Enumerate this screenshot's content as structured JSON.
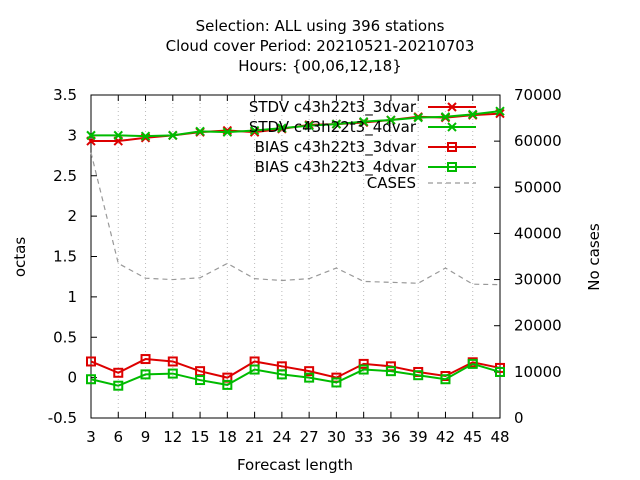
{
  "chart_data": {
    "type": "line",
    "title_lines": [
      "Selection: ALL using   396 stations",
      "Cloud cover   Period: 20210521-20210703",
      "Hours: {00,06,12,18}"
    ],
    "xlabel": "Forecast length",
    "ylabel": "octas",
    "y2label": "No cases",
    "x": [
      3,
      6,
      9,
      12,
      15,
      18,
      21,
      24,
      27,
      30,
      33,
      36,
      39,
      42,
      45,
      48
    ],
    "xlim": [
      3,
      48
    ],
    "ylim": [
      -0.5,
      3.5
    ],
    "y2lim": [
      0,
      70000
    ],
    "yticks": [
      "-0.5",
      "0",
      "0.5",
      "1",
      "1.5",
      "2",
      "2.5",
      "3",
      "3.5"
    ],
    "y2ticks": [
      "0",
      "10000",
      "20000",
      "30000",
      "40000",
      "50000",
      "60000",
      "70000"
    ],
    "legend_position": "top-right",
    "series": [
      {
        "name": "STDV c43h22t3_3dvar",
        "color": "#dd0000",
        "marker": "x",
        "axis": "y1",
        "values": [
          2.93,
          2.93,
          2.97,
          3.0,
          3.04,
          3.06,
          3.04,
          3.08,
          3.13,
          3.14,
          3.16,
          3.19,
          3.23,
          3.22,
          3.25,
          3.27
        ]
      },
      {
        "name": "STDV c43h22t3_4dvar",
        "color": "#00bb00",
        "marker": "x",
        "axis": "y1",
        "values": [
          3.0,
          3.0,
          2.99,
          3.0,
          3.05,
          3.04,
          3.06,
          3.09,
          3.12,
          3.14,
          3.17,
          3.19,
          3.22,
          3.23,
          3.26,
          3.3
        ]
      },
      {
        "name": "BIAS c43h22t3_3dvar",
        "color": "#dd0000",
        "marker": "square",
        "axis": "y1",
        "values": [
          0.2,
          0.06,
          0.23,
          0.2,
          0.08,
          0.0,
          0.2,
          0.14,
          0.08,
          0.0,
          0.17,
          0.14,
          0.07,
          0.02,
          0.19,
          0.12
        ]
      },
      {
        "name": "BIAS c43h22t3_4dvar",
        "color": "#00bb00",
        "marker": "square",
        "axis": "y1",
        "values": [
          -0.02,
          -0.1,
          0.04,
          0.05,
          -0.03,
          -0.09,
          0.1,
          0.04,
          0.0,
          -0.06,
          0.1,
          0.08,
          0.03,
          -0.02,
          0.17,
          0.07
        ]
      },
      {
        "name": "CASES",
        "color": "#999999",
        "marker": "none",
        "dash": true,
        "axis": "y2",
        "values": [
          57500,
          33500,
          30300,
          30000,
          30400,
          33500,
          30200,
          29800,
          30200,
          32500,
          29600,
          29400,
          29200,
          32500,
          29000,
          28900
        ]
      }
    ]
  }
}
